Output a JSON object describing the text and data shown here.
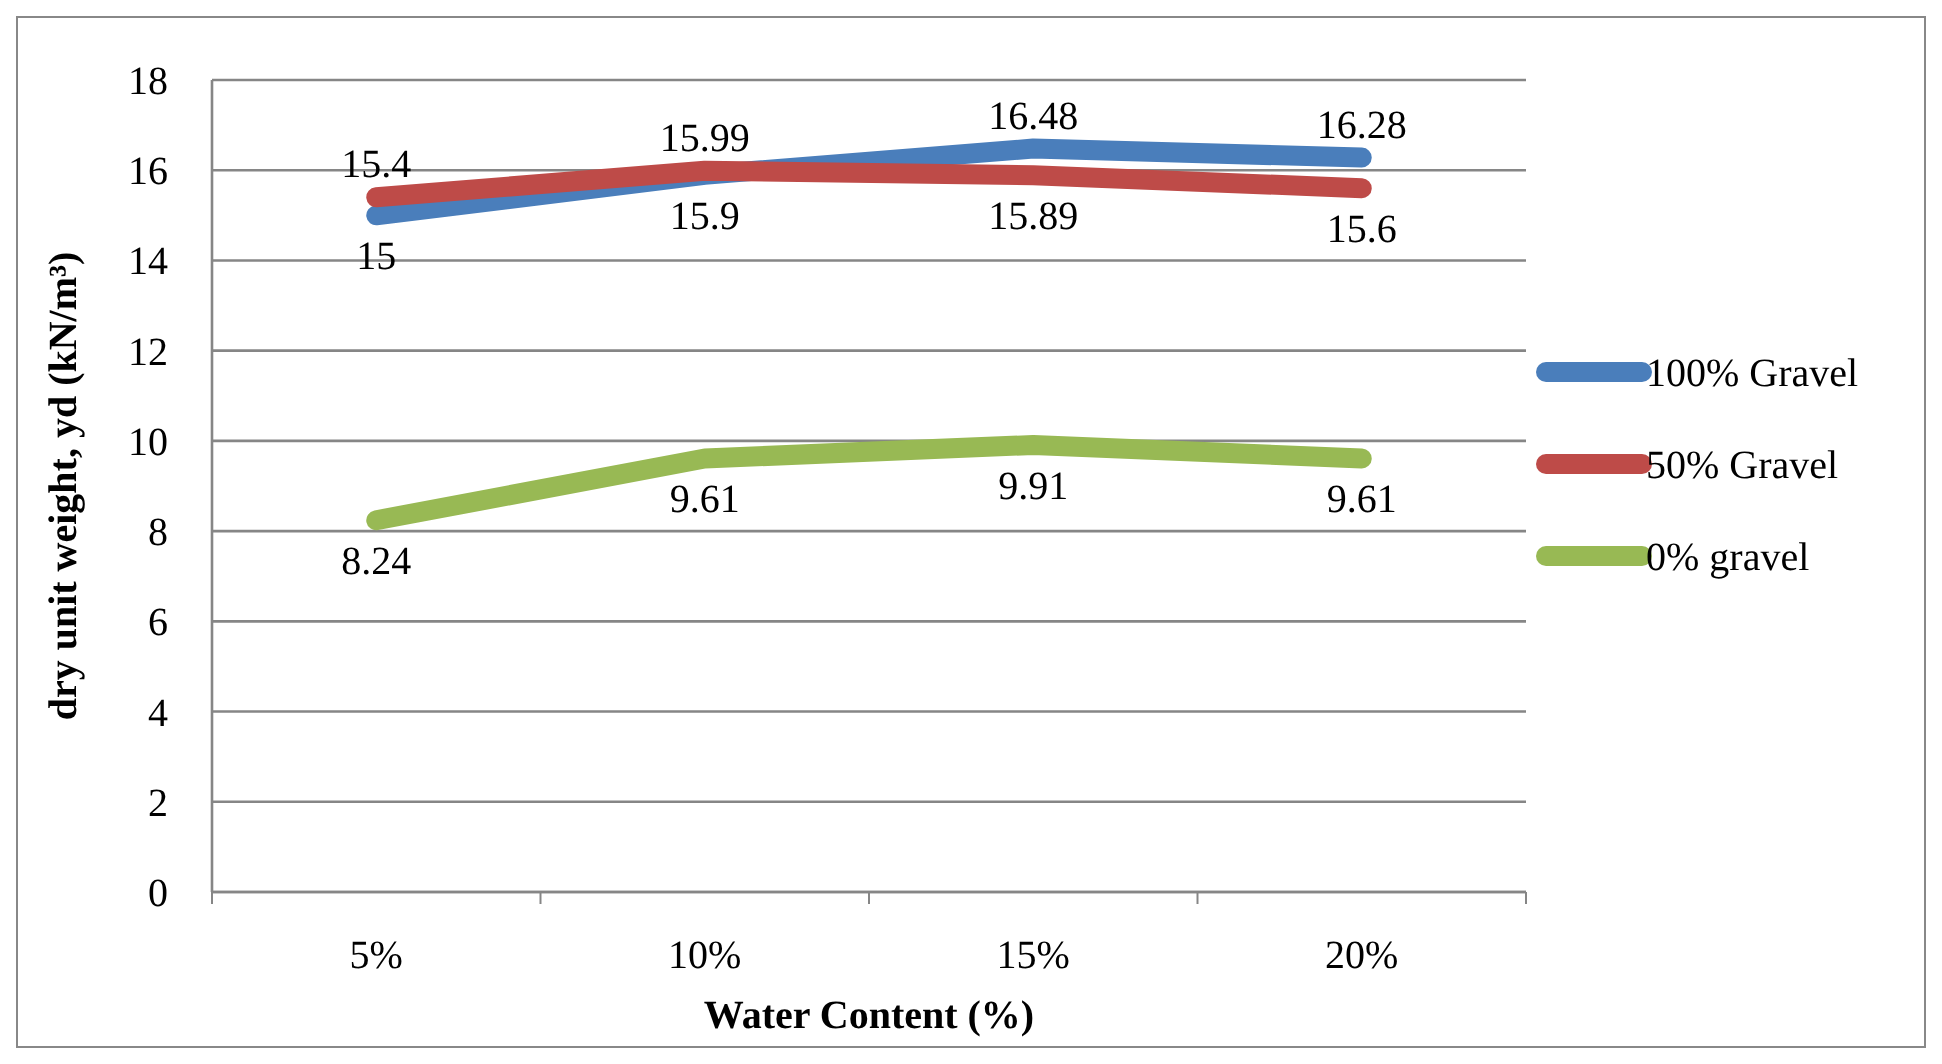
{
  "chart_data": {
    "type": "line",
    "xlabel": "Water Content (%)",
    "ylabel": "dry unit weight, yd  (kN/m³)",
    "categories": [
      "5%",
      "10%",
      "15%",
      "20%"
    ],
    "series": [
      {
        "name": "100% Gravel",
        "color": "#4a7ebb",
        "values": [
          15,
          15.9,
          16.48,
          16.28
        ]
      },
      {
        "name": "50% Gravel",
        "color": "#be4b48",
        "values": [
          15.4,
          15.99,
          15.89,
          15.6
        ]
      },
      {
        "name": "0% gravel",
        "color": "#98b954",
        "values": [
          8.24,
          9.61,
          9.91,
          9.61
        ]
      }
    ],
    "ylim": [
      0,
      18
    ],
    "yticks": [
      0,
      2,
      4,
      6,
      8,
      10,
      12,
      14,
      16,
      18
    ],
    "grid": "y",
    "legend": "right",
    "data_labels": true,
    "marker": "none",
    "line_style": "solid"
  }
}
